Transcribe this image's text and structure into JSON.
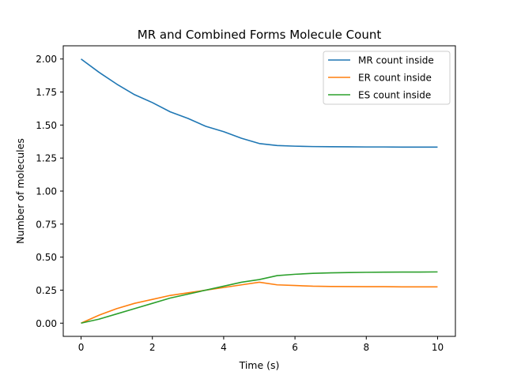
{
  "chart_data": {
    "type": "line",
    "title": "MR and Combined Forms Molecule Count",
    "xlabel": "Time (s)",
    "ylabel": "Number of molecules",
    "xlim": [
      -0.5,
      10.5
    ],
    "ylim": [
      -0.1,
      2.1
    ],
    "x_ticks": [
      0,
      2,
      4,
      6,
      8,
      10
    ],
    "y_ticks": [
      0.0,
      0.25,
      0.5,
      0.75,
      1.0,
      1.25,
      1.5,
      1.75,
      2.0
    ],
    "x_tick_labels": [
      "0",
      "2",
      "4",
      "6",
      "8",
      "10"
    ],
    "y_tick_labels": [
      "0.00",
      "0.25",
      "0.50",
      "0.75",
      "1.00",
      "1.25",
      "1.50",
      "1.75",
      "2.00"
    ],
    "grid": false,
    "legend_position": "top-right",
    "x": [
      0,
      0.5,
      1,
      1.5,
      2,
      2.5,
      3,
      3.5,
      4,
      4.5,
      5,
      5.5,
      6,
      6.5,
      7,
      7.5,
      8,
      8.5,
      9,
      9.5,
      10
    ],
    "series": [
      {
        "name": "MR count inside",
        "color": "#1f77b4",
        "values": [
          2.0,
          1.9,
          1.81,
          1.73,
          1.67,
          1.6,
          1.55,
          1.49,
          1.45,
          1.4,
          1.36,
          1.345,
          1.34,
          1.337,
          1.336,
          1.335,
          1.334,
          1.334,
          1.333,
          1.333,
          1.333
        ]
      },
      {
        "name": "ER count inside",
        "color": "#ff7f0e",
        "values": [
          0.0,
          0.06,
          0.11,
          0.15,
          0.18,
          0.21,
          0.23,
          0.25,
          0.27,
          0.29,
          0.31,
          0.29,
          0.285,
          0.28,
          0.278,
          0.277,
          0.276,
          0.276,
          0.275,
          0.275,
          0.275
        ]
      },
      {
        "name": "ES count inside",
        "color": "#2ca02c",
        "values": [
          0.0,
          0.03,
          0.07,
          0.11,
          0.15,
          0.19,
          0.22,
          0.25,
          0.28,
          0.31,
          0.33,
          0.36,
          0.37,
          0.377,
          0.381,
          0.383,
          0.385,
          0.386,
          0.387,
          0.387,
          0.388
        ]
      }
    ]
  }
}
